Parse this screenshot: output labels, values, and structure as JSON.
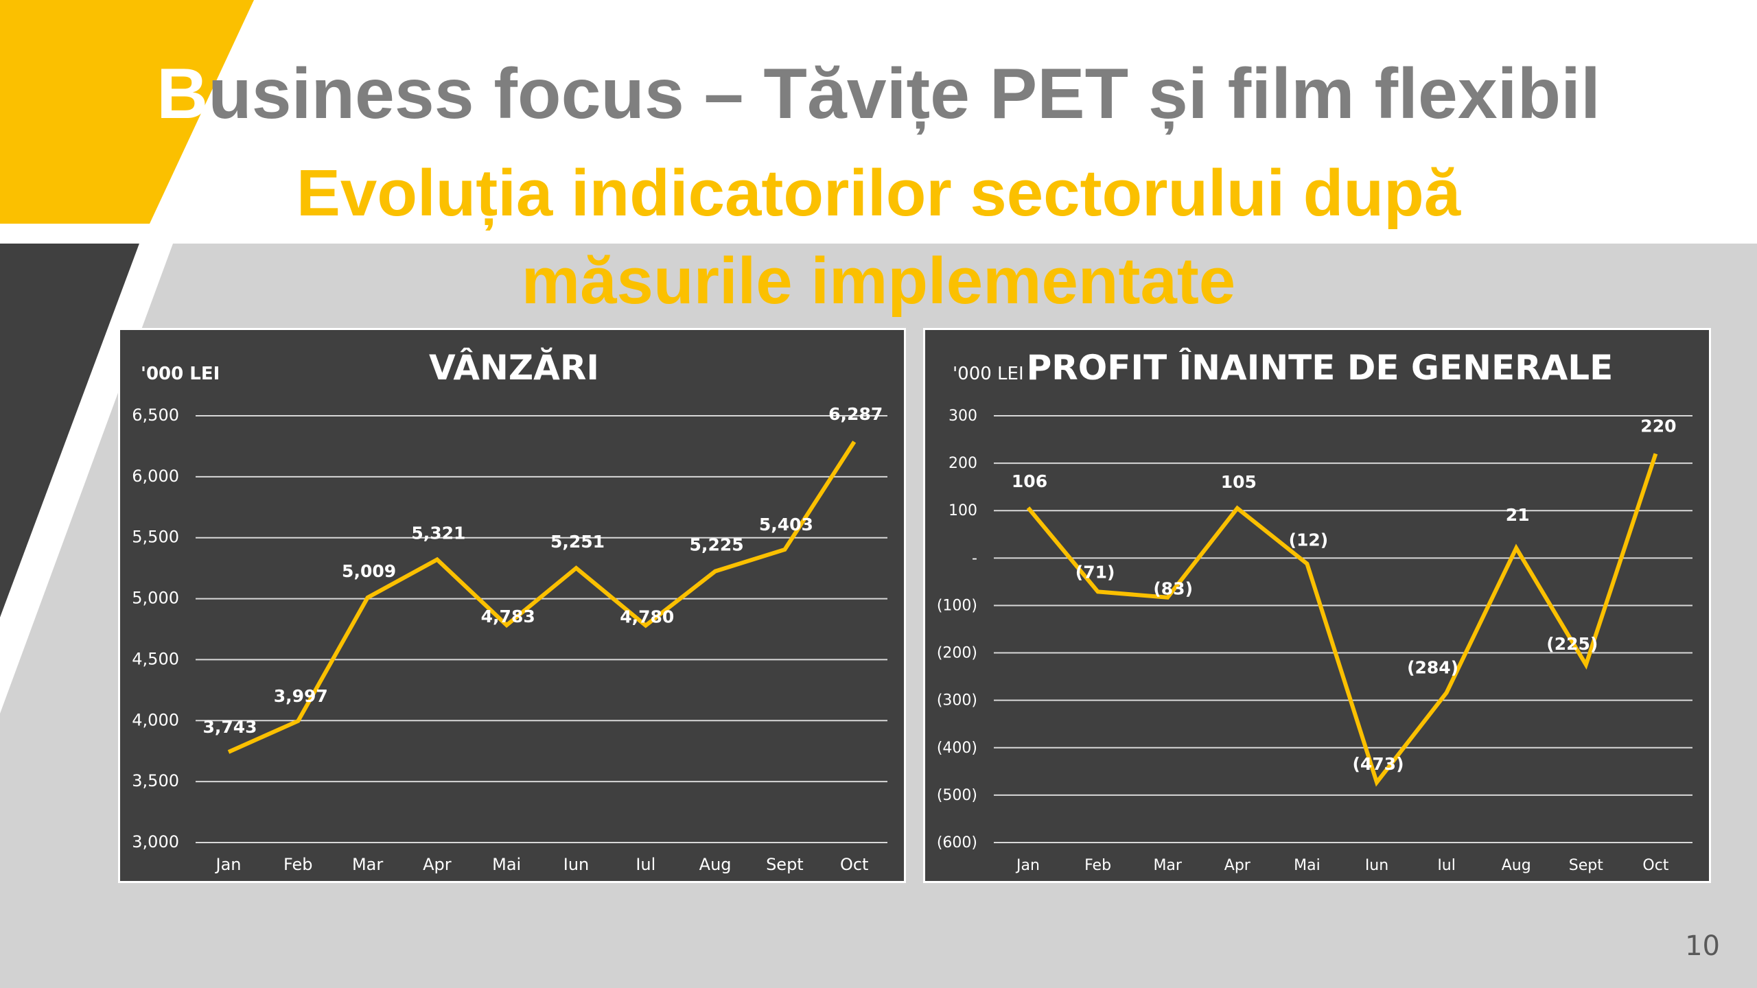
{
  "slide": {
    "title_first_letter": "B",
    "title_rest": "usiness focus – Tăvițe PET și film flexibil",
    "subtitle_line1": "Evoluția indicatorilor sectorului după",
    "subtitle_line2": "măsurile implementate",
    "page_number": "10",
    "colors": {
      "accent_yellow": "#fbc000",
      "title_gray": "#7f7f7f",
      "panel_dark": "#404040",
      "background_gray": "#d2d2d2"
    }
  },
  "chart_data": [
    {
      "type": "line",
      "title": "VÂNZĂRI",
      "unit_label": "'000 LEI",
      "xlabel": "",
      "ylabel": "'000 LEI",
      "categories": [
        "Jan",
        "Feb",
        "Mar",
        "Apr",
        "Mai",
        "Iun",
        "Iul",
        "Aug",
        "Sept",
        "Oct"
      ],
      "series": [
        {
          "name": "Vânzări",
          "values": [
            3743,
            3997,
            5009,
            5321,
            4783,
            5251,
            4780,
            5225,
            5403,
            6287
          ]
        }
      ],
      "data_labels": [
        "3,743",
        "3,997",
        "5,009",
        "5,321",
        "4,783",
        "5,251",
        "4,780",
        "5,225",
        "5,403",
        "6,287"
      ],
      "yticks": [
        3000,
        3500,
        4000,
        4500,
        5000,
        5500,
        6000,
        6500
      ],
      "ytick_labels": [
        "3,000",
        "3,500",
        "4,000",
        "4,500",
        "5,000",
        "5,500",
        "6,000",
        "6,500"
      ],
      "ylim": [
        3000,
        6500
      ],
      "grid": true,
      "legend": "none",
      "line_color": "#fbc000"
    },
    {
      "type": "line",
      "title": "PROFIT ÎNAINTE DE GENERALE",
      "unit_label": "'000 LEI",
      "xlabel": "",
      "ylabel": "'000 LEI",
      "categories": [
        "Jan",
        "Feb",
        "Mar",
        "Apr",
        "Mai",
        "Iun",
        "Iul",
        "Aug",
        "Sept",
        "Oct"
      ],
      "series": [
        {
          "name": "Profit înainte de generale",
          "values": [
            106,
            -71,
            -83,
            105,
            -12,
            -473,
            -284,
            21,
            -225,
            220
          ]
        }
      ],
      "data_labels": [
        "106",
        "(71)",
        "(83)",
        "105",
        "(12)",
        "(473)",
        "(284)",
        "21",
        "(225)",
        "220"
      ],
      "yticks": [
        -600,
        -500,
        -400,
        -300,
        -200,
        -100,
        0,
        100,
        200,
        300
      ],
      "ytick_labels": [
        "(600)",
        "(500)",
        "(400)",
        "(300)",
        "(200)",
        "(100)",
        "-",
        "100",
        "200",
        "300"
      ],
      "ylim": [
        -600,
        300
      ],
      "grid": true,
      "legend": "none",
      "line_color": "#fbc000"
    }
  ]
}
